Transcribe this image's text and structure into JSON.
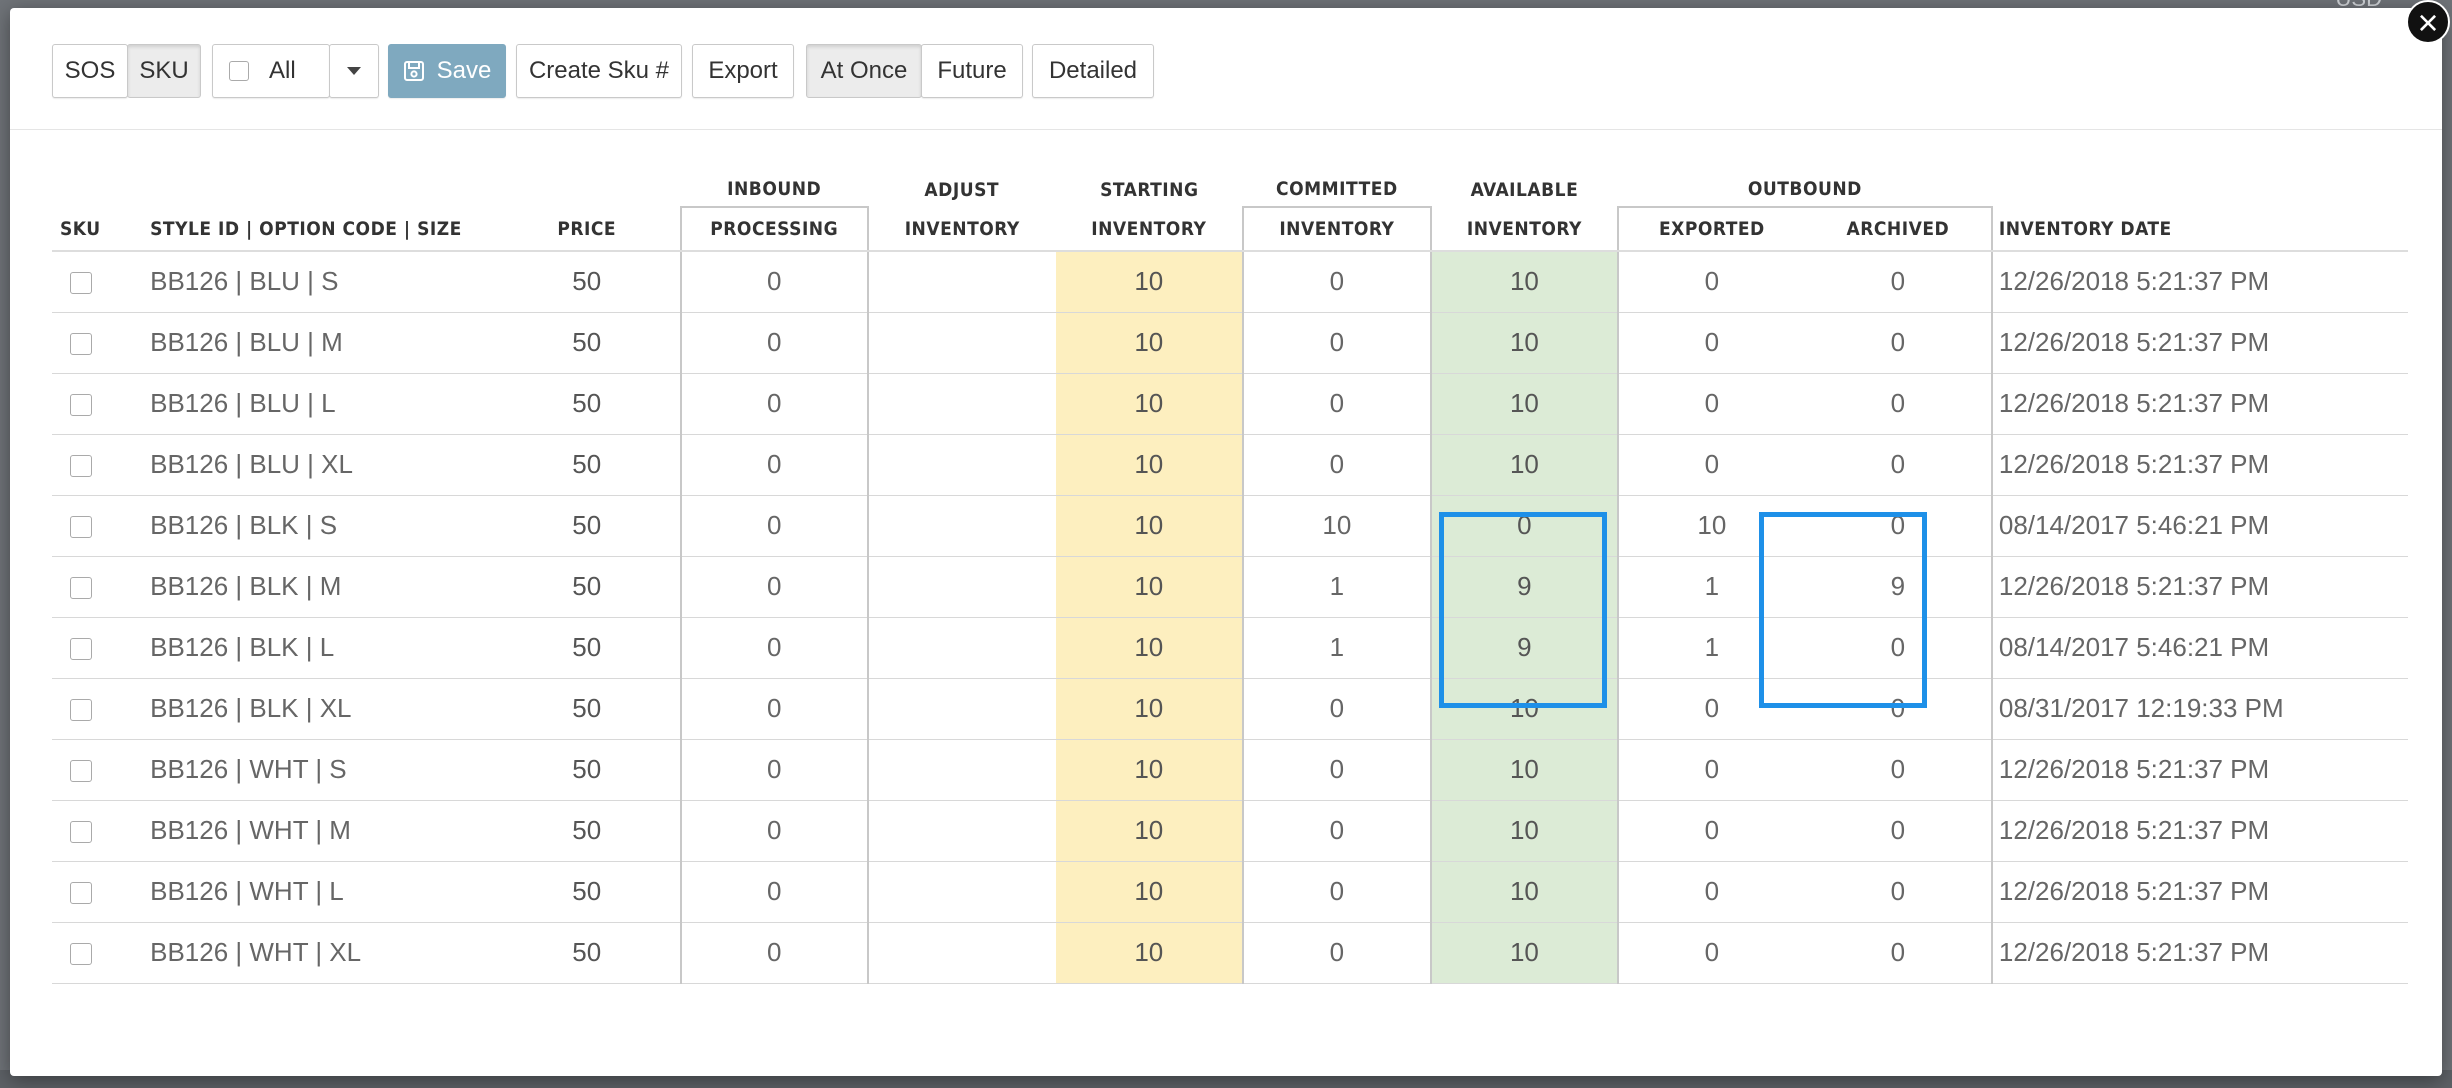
{
  "backdrop": {
    "currency": "USD"
  },
  "toolbar": {
    "view_toggle": [
      "SOS",
      "SKU"
    ],
    "filter_label": "All",
    "save_label": "Save",
    "create_sku_label": "Create Sku #",
    "export_label": "Export",
    "timing_toggle": [
      "At Once",
      "Future"
    ],
    "detailed_label": "Detailed"
  },
  "table": {
    "group_headers": {
      "inbound": "INBOUND",
      "adjust": "ADJUST",
      "starting": "STARTING",
      "committed": "COMMITTED",
      "available": "AVAILABLE",
      "outbound": "OUTBOUND"
    },
    "columns": {
      "sku": "SKU",
      "style": "STYLE ID | OPTION CODE | SIZE",
      "price": "PRICE",
      "processing": "PROCESSING",
      "adjust_inventory": "INVENTORY",
      "starting_inventory": "INVENTORY",
      "committed_inventory": "INVENTORY",
      "available_inventory": "INVENTORY",
      "exported": "EXPORTED",
      "archived": "ARCHIVED",
      "inventory_date": "INVENTORY DATE"
    },
    "rows": [
      {
        "style": "BB126 | BLU | S",
        "price": "50",
        "processing": "0",
        "adjust": "",
        "starting": "10",
        "committed": "0",
        "available": "10",
        "exported": "0",
        "archived": "0",
        "date": "12/26/2018 5:21:37 PM"
      },
      {
        "style": "BB126 | BLU | M",
        "price": "50",
        "processing": "0",
        "adjust": "",
        "starting": "10",
        "committed": "0",
        "available": "10",
        "exported": "0",
        "archived": "0",
        "date": "12/26/2018 5:21:37 PM"
      },
      {
        "style": "BB126 | BLU | L",
        "price": "50",
        "processing": "0",
        "adjust": "",
        "starting": "10",
        "committed": "0",
        "available": "10",
        "exported": "0",
        "archived": "0",
        "date": "12/26/2018 5:21:37 PM"
      },
      {
        "style": "BB126 | BLU | XL",
        "price": "50",
        "processing": "0",
        "adjust": "",
        "starting": "10",
        "committed": "0",
        "available": "10",
        "exported": "0",
        "archived": "0",
        "date": "12/26/2018 5:21:37 PM"
      },
      {
        "style": "BB126 | BLK | S",
        "price": "50",
        "processing": "0",
        "adjust": "",
        "starting": "10",
        "committed": "10",
        "available": "0",
        "exported": "10",
        "archived": "0",
        "date": "08/14/2017 5:46:21 PM"
      },
      {
        "style": "BB126 | BLK | M",
        "price": "50",
        "processing": "0",
        "adjust": "",
        "starting": "10",
        "committed": "1",
        "available": "9",
        "exported": "1",
        "archived": "9",
        "date": "12/26/2018 5:21:37 PM"
      },
      {
        "style": "BB126 | BLK | L",
        "price": "50",
        "processing": "0",
        "adjust": "",
        "starting": "10",
        "committed": "1",
        "available": "9",
        "exported": "1",
        "archived": "0",
        "date": "08/14/2017 5:46:21 PM"
      },
      {
        "style": "BB126 | BLK | XL",
        "price": "50",
        "processing": "0",
        "adjust": "",
        "starting": "10",
        "committed": "0",
        "available": "10",
        "exported": "0",
        "archived": "0",
        "date": "08/31/2017 12:19:33 PM"
      },
      {
        "style": "BB126 | WHT | S",
        "price": "50",
        "processing": "0",
        "adjust": "",
        "starting": "10",
        "committed": "0",
        "available": "10",
        "exported": "0",
        "archived": "0",
        "date": "12/26/2018 5:21:37 PM"
      },
      {
        "style": "BB126 | WHT | M",
        "price": "50",
        "processing": "0",
        "adjust": "",
        "starting": "10",
        "committed": "0",
        "available": "10",
        "exported": "0",
        "archived": "0",
        "date": "12/26/2018 5:21:37 PM"
      },
      {
        "style": "BB126 | WHT | L",
        "price": "50",
        "processing": "0",
        "adjust": "",
        "starting": "10",
        "committed": "0",
        "available": "10",
        "exported": "0",
        "archived": "0",
        "date": "12/26/2018 5:21:37 PM"
      },
      {
        "style": "BB126 | WHT | XL",
        "price": "50",
        "processing": "0",
        "adjust": "",
        "starting": "10",
        "committed": "0",
        "available": "10",
        "exported": "0",
        "archived": "0",
        "date": "12/26/2018 5:21:37 PM"
      }
    ]
  },
  "colors": {
    "starting_bg": "#fdefbf",
    "available_bg": "#dcebd6",
    "highlight": "#1e90e8",
    "save_bg": "#7fa9bf"
  },
  "icons": {
    "save": "floppy-disk-icon",
    "dropdown": "caret-down-icon",
    "close": "close-icon"
  }
}
